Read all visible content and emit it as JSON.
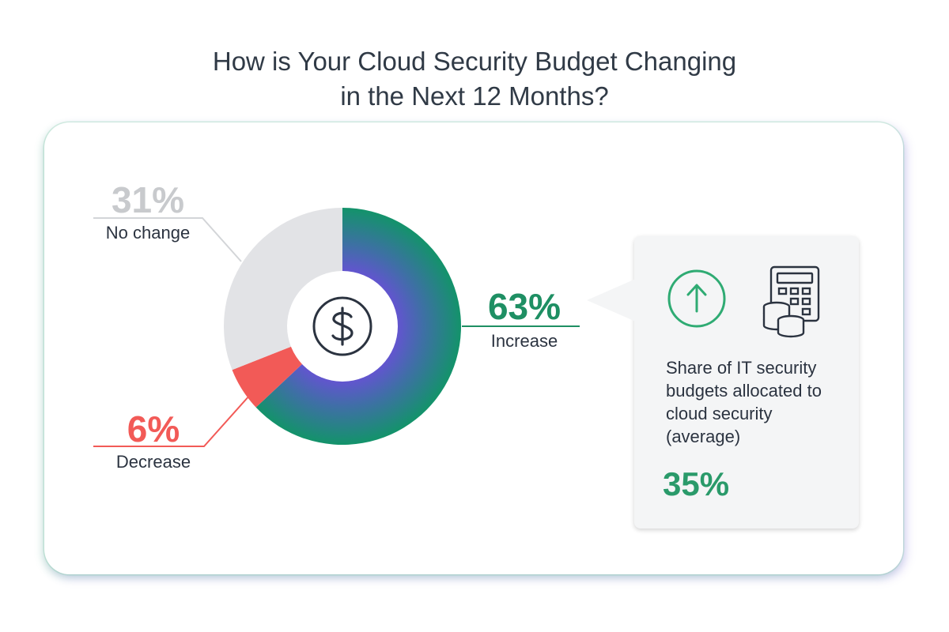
{
  "title": {
    "line1": "How is Your Cloud Security Budget Changing",
    "line2": "in the Next 12 Months?"
  },
  "chart_data": {
    "type": "pie",
    "title": "How is Your Cloud Security Budget Changing in the Next 12 Months?",
    "categories": [
      "Increase",
      "Decrease",
      "No change"
    ],
    "values": [
      63,
      6,
      31
    ],
    "value_labels": [
      "63%",
      "6%",
      "31%"
    ],
    "colors": [
      "#1e8f63",
      "#f25a57",
      "#e2e3e6"
    ],
    "label_colors": [
      "#1e8f63",
      "#f25a57",
      "#c8cacd"
    ],
    "donut": true,
    "center_icon": "dollar-icon"
  },
  "callout": {
    "icons": [
      "arrow-up-circle-icon",
      "calculator-coins-icon"
    ],
    "text": "Share of IT security budgets allocated to cloud security (average)",
    "value": "35%",
    "value_color": "#2a9a6a"
  }
}
